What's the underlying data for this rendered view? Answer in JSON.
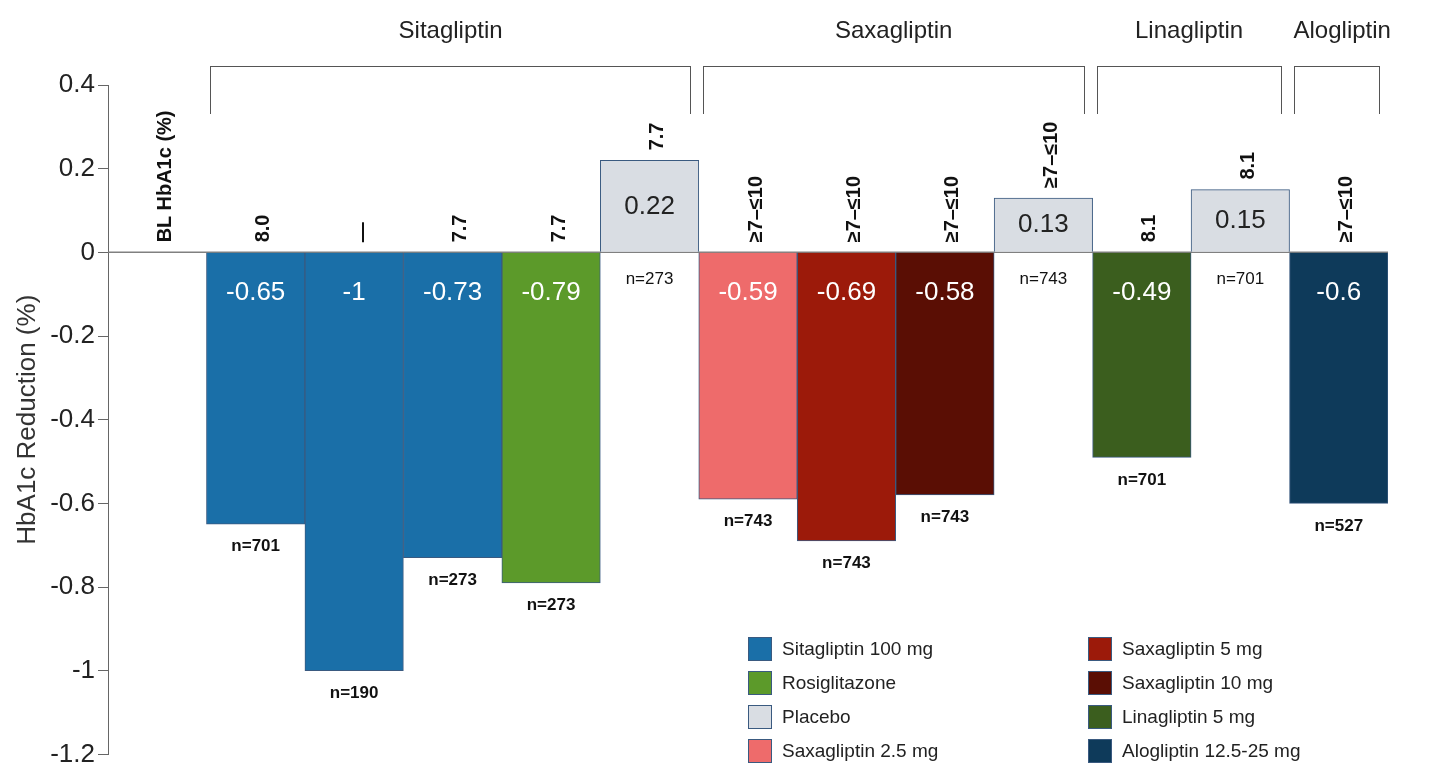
{
  "chart_data": {
    "type": "bar",
    "ylabel": "HbA1c Reduction (%)",
    "categories": [
      null,
      "n=701",
      "n=190",
      "n=273",
      "n=273",
      "n=273",
      "n=743",
      "n=743",
      "n=743",
      "n=743",
      "n=701",
      "n=701",
      "n=527"
    ],
    "series": [
      {
        "name": "Sitagliptin 100 mg",
        "color": "#1a6fa8",
        "values": [
          null,
          -0.65,
          -1,
          -0.73,
          null,
          null,
          null,
          null,
          null,
          null,
          null,
          null,
          null
        ]
      },
      {
        "name": "Rosiglitazone",
        "color": "#5c9a2a",
        "values": [
          null,
          null,
          null,
          null,
          -0.79,
          null,
          null,
          null,
          null,
          null,
          null,
          null,
          null
        ]
      },
      {
        "name": "Placebo",
        "color": "#d9dde3",
        "values": [
          null,
          null,
          null,
          null,
          null,
          0.22,
          null,
          null,
          null,
          0.13,
          null,
          0.15,
          null
        ]
      },
      {
        "name": "Saxagliptin 2.5 mg",
        "color": "#ee6b6b",
        "values": [
          null,
          null,
          null,
          null,
          null,
          null,
          -0.59,
          null,
          null,
          null,
          null,
          null,
          null
        ]
      },
      {
        "name": "Saxagliptin 5 mg",
        "color": "#9c1a0a",
        "values": [
          null,
          null,
          null,
          null,
          null,
          null,
          null,
          -0.69,
          null,
          null,
          null,
          null,
          null
        ]
      },
      {
        "name": "Saxagliptin 10 mg",
        "color": "#5a0e04",
        "values": [
          null,
          null,
          null,
          null,
          null,
          null,
          null,
          null,
          -0.58,
          null,
          null,
          null,
          null
        ]
      },
      {
        "name": "Linagliptin 5 mg",
        "color": "#3b5e1e",
        "values": [
          null,
          null,
          null,
          null,
          null,
          null,
          null,
          null,
          null,
          null,
          -0.49,
          null,
          null
        ]
      },
      {
        "name": "Alogliptin 12.5-25 mg",
        "color": "#0e3a5a",
        "values": [
          null,
          null,
          null,
          null,
          null,
          null,
          null,
          null,
          null,
          null,
          null,
          null,
          -0.6
        ]
      }
    ],
    "ylim": [
      -1.2,
      0.4
    ],
    "yticks": [
      -1.2,
      -1,
      -0.8,
      -0.6,
      -0.4,
      -0.2,
      0,
      0.2,
      0.4
    ],
    "grid": false,
    "legend": "bottom right",
    "tick_labels": "y",
    "data_labels": true,
    "ref_lines": [
      {
        "axis": "y",
        "value": 0,
        "color": "#808080"
      }
    ],
    "annotations": [
      "BL HbA1c (%)",
      "8.0",
      "—",
      "7.7",
      "7.7",
      "7.7",
      "≥7–≤10",
      "≥7–≤10",
      "≥7–≤10",
      "≥7–≤10",
      "8.1",
      "8.1",
      "≥7–≤10",
      "Sitagliptin",
      "Saxagliptin",
      "Linagliptin",
      "Alogliptin"
    ]
  }
}
